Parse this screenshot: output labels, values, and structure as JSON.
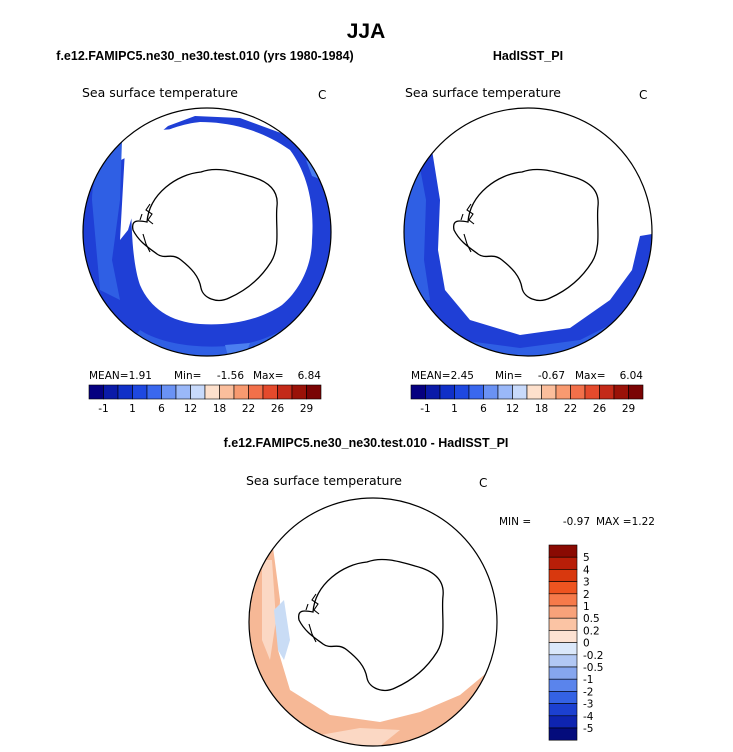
{
  "title": "JJA",
  "colors": {
    "ocean_dark": "#1f3fd6",
    "ocean_mid": "#2f5fe4",
    "ocean_light": "#4b7ff0",
    "diff_warm": "#f6b896",
    "diff_warm_light": "#fbd8c4",
    "diff_cool": "#c9dcf5"
  },
  "chart_data": [
    {
      "type": "heatmap",
      "title": "f.e12.FAMIPC5.ne30_ne30.test.010 (yrs 1980-1984)",
      "variable": "Sea surface temperature",
      "units": "C",
      "projection": "south polar stereographic",
      "stats": {
        "mean_label": "MEAN=",
        "mean": "1.91",
        "min_label": "Min=",
        "min": "-1.56",
        "max_label": "Max=",
        "max": "6.84"
      },
      "colorbar": {
        "orientation": "horizontal",
        "tick_labels": [
          "-1",
          "1",
          "6",
          "12",
          "18",
          "22",
          "26",
          "29"
        ],
        "colors": [
          "#050080",
          "#0a1aa8",
          "#1030c8",
          "#1e48e0",
          "#3a68ee",
          "#6a92f4",
          "#9ab8f8",
          "#c8dafb",
          "#fde0cc",
          "#fbbe9c",
          "#f89a70",
          "#f2704a",
          "#e44a2c",
          "#c42a18",
          "#9a1208",
          "#7a0404"
        ]
      }
    },
    {
      "type": "heatmap",
      "title": "HadISST_PI",
      "variable": "Sea surface temperature",
      "units": "C",
      "projection": "south polar stereographic",
      "stats": {
        "mean_label": "MEAN=",
        "mean": "2.45",
        "min_label": "Min=",
        "min": "-0.67",
        "max_label": "Max=",
        "max": "6.04"
      },
      "colorbar": {
        "orientation": "horizontal",
        "tick_labels": [
          "-1",
          "1",
          "6",
          "12",
          "18",
          "22",
          "26",
          "29"
        ],
        "colors": [
          "#050080",
          "#0a1aa8",
          "#1030c8",
          "#1e48e0",
          "#3a68ee",
          "#6a92f4",
          "#9ab8f8",
          "#c8dafb",
          "#fde0cc",
          "#fbbe9c",
          "#f89a70",
          "#f2704a",
          "#e44a2c",
          "#c42a18",
          "#9a1208",
          "#7a0404"
        ]
      }
    },
    {
      "type": "heatmap",
      "title": "f.e12.FAMIPC5.ne30_ne30.test.010 - HadISST_PI",
      "variable": "Sea surface temperature",
      "units": "C",
      "projection": "south polar stereographic",
      "stats": {
        "min_label": "MIN =",
        "min": "-0.97",
        "max_label": "MAX =",
        "max": "1.22"
      },
      "colorbar": {
        "orientation": "vertical",
        "tick_labels": [
          "5",
          "4",
          "3",
          "2",
          "1",
          "0.5",
          "0.2",
          "0",
          "-0.2",
          "-0.5",
          "-1",
          "-2",
          "-3",
          "-4",
          "-5"
        ],
        "colors": [
          "#8a0a02",
          "#b81e08",
          "#d8380e",
          "#ee5420",
          "#f67a4a",
          "#f8a27a",
          "#fbc4a4",
          "#fde2d2",
          "#dbe8fa",
          "#b2c8f4",
          "#86a6ee",
          "#5a84ec",
          "#3462e4",
          "#1c40d0",
          "#0e24b0",
          "#040c7c"
        ]
      }
    }
  ]
}
